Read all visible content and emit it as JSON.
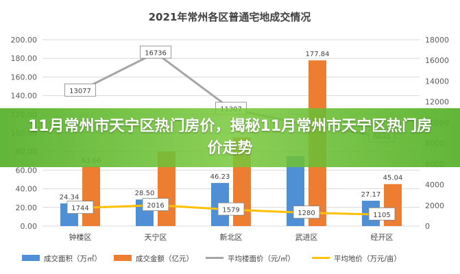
{
  "banner": {
    "text": "11月常州市天宁区热门房价，揭秘11月常州市天宁区热门房价走势"
  },
  "chart_data": {
    "type": "bar",
    "title": "2021年常州各区普通宅地成交情况",
    "categories": [
      "钟楼区",
      "天宁区",
      "新北区",
      "武进区",
      "经开区"
    ],
    "series": [
      {
        "name": "成交面积（万㎡）",
        "type": "bar",
        "axis": "left",
        "color": "#4e8fd6",
        "values": [
          24.34,
          28.5,
          46.23,
          75,
          27.17
        ],
        "labels": [
          "24.34",
          "28.50",
          "46.23",
          "",
          "27.17"
        ]
      },
      {
        "name": "成交金额（亿元）",
        "type": "bar",
        "axis": "left",
        "color": "#ed7d31",
        "values": [
          63.66,
          80,
          95,
          177.84,
          45.04
        ],
        "labels": [
          "63.66",
          "",
          "",
          "177.84",
          "45.04"
        ]
      },
      {
        "name": "平均楼面价（元/㎡）",
        "type": "line",
        "axis": "right",
        "color": "#a5a5a5",
        "values": [
          13077,
          16736,
          11307,
          9800,
          8640
        ],
        "labels": [
          "13077",
          "16736",
          "11307",
          "",
          "8640"
        ]
      },
      {
        "name": "平均地价（万元/亩）",
        "type": "line",
        "axis": "right",
        "color": "#ffc000",
        "values": [
          1744,
          2016,
          1579,
          1280,
          1105
        ],
        "labels": [
          "1744",
          "2016",
          "1579",
          "1280",
          "1105"
        ]
      }
    ],
    "y_left": {
      "min": 0,
      "max": 200,
      "ticks": [
        "0.00",
        "20.00",
        "40.00",
        "60.00",
        "80.00",
        "100.00",
        "120.00",
        "140.00",
        "160.00",
        "180.00",
        "200.00"
      ]
    },
    "y_right": {
      "min": 0,
      "max": 18000,
      "ticks": [
        "0",
        "2000",
        "4000",
        "6000",
        "8000",
        "10000",
        "12000",
        "14000",
        "16000",
        "18000"
      ]
    },
    "grid": true,
    "legend_position": "bottom"
  }
}
